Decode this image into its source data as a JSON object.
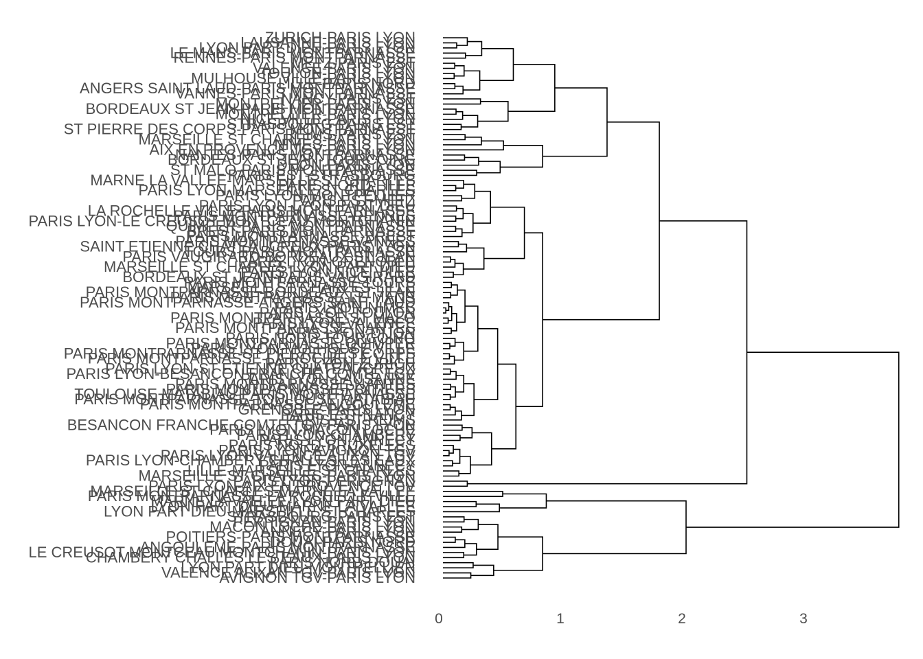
{
  "chart_data": {
    "type": "dendrogram",
    "orientation": "horizontal",
    "title": "",
    "xlabel": "",
    "ylabel": "",
    "xlim": [
      0,
      3.8
    ],
    "x_ticks": [
      0,
      1,
      2,
      3
    ],
    "grid": false,
    "legend": "none",
    "colors": {
      "line": "#000000",
      "text": "#4d4d4d",
      "background": "#ffffff"
    },
    "leaves": [
      "ZURICH-PARIS LYON",
      "LAUSANNE-PARIS LYON",
      "LYON PART DIEU-PARIS LYON",
      "LE MANS-PARIS MONTPARNASSE",
      "RENNES-PARIS MONTPARNASSE",
      "METZ-PARIS EST",
      "VALENCE-PARIS LYON",
      "TOULON-PARIS LYON",
      "MULHOUSE VILLE-PARIS LYON",
      "LILLE-PARIS NORD",
      "ANGERS SAINT LAUD-PARIS MONTPARNASSE",
      "VANNES-PARIS MONTPARNASSE",
      "NANCY-PARIS EST",
      "MONTPELLIER-PARIS LYON",
      "BORDEAUX ST JEAN-PARIS MONTPARNASSE",
      "MONTPELLIER-PARIS LYON",
      "NICE VILLE-PARIS LYON",
      "STRASBOURG-PARIS EST",
      "ST PIERRE DES CORPS-PARIS MONTPARNASSE",
      "REIMS-PARIS EST",
      "MARSEILLE ST CHARLES-PARIS LYON",
      "NIMES-PARIS LYON",
      "AIX EN PROVENCE TGV-PARIS LYON",
      "NANTES-PARIS MONTPARNASSE",
      "BORDEAUX ST JEAN-TOURCOING",
      "DIJON-PARIS LYON",
      "ST MALO-PARIS MONTPARNASSE",
      "PARIS EST-STRASBOURG",
      "MARNE LA VALLEE-MARSEILLE ST CHARLES",
      "PARIS NORD-LILLE",
      "PARIS LYON-MARSEILLE ST CHARLES",
      "PARIS LYON-MONTPELLIER",
      "PARIS EST-METZ",
      "PARIS LYON-LYON PART DIEU",
      "LA ROCHELLE VILLE-PARIS MONTPARNASSE",
      "PARIS MONTPARNASSE-RENNES",
      "PARIS LYON-LE CREUSOT MONTCEAU MONTCHANIN",
      "QUIMPER-PARIS MONTPARNASSE",
      "BREST-PARIS MONTPARNASSE",
      "PARIS MONTPARNASSE-BREST",
      "PARIS MONTPARNASSE-VANNES",
      "SAINT ETIENNE CHATEAUCREUX-PARIS LYON",
      "TOURS-PARIS MONTPARNASSE",
      "PARIS VAUGIRARD-BORDEAUX ST JEAN",
      "PARIS LYON-GRENOBLE",
      "MARSEILLE ST CHARLES-LYON PART DIEU",
      "PARIS LYON-NICE VILLE",
      "BORDEAUX ST JEAN-PARIS VAUGIRARD",
      "PARIS MONTPARNASSE-TOURS",
      "MARSEILLE ST CHARLES-LILLE",
      "PARIS MONTPARNASSE-BORDEAUX ST JEAN",
      "PARIS MONTPARNASSE-LE MANS",
      "PARIS MONTPARNASSE-ANGERS SAINT LAUD",
      "PARIS LYON-NIMES",
      "PARIS LYON-TOULON",
      "PARIS MONTPARNASSE-ST MALO",
      "PARIS LYON-VALENCE",
      "PARIS MONTPARNASSE-NANTES",
      "PARIS LYON-DIJON",
      "PARIS NORD-TOURCOING",
      "PARIS MONTPARNASSE-QUIMPER",
      "PARIS LYON-MULHOUSE VILLE",
      "PARIS MONTPARNASSE-ST PIERRE DES CORPS",
      "PARIS MONTPARNASSE-LA ROCHELLE VILLE",
      "PARIS LYON-ZURICH",
      "PARIS LYON-ST ETIENNE CHATEAUCREUX",
      "PARIS LYON-BESANCON FRANCHE COMTE TGV",
      "PARIS LYON-LAUSANNE",
      "PARIS MONTPARNASSE-NANTES",
      "PARIS MONTPARNASSE-POITIERS",
      "TOULOUSE MATABIAU-PARIS MONTPARNASSE",
      "PARIS MONTPARNASSE-TOULOUSE MATABIAU",
      "PARIS MONTPARNASSE-ANGOULEME",
      "GRENOBLE-PARIS LYON",
      "PARIS EST-NANCY",
      "PARIS EST-REIMS",
      "BESANCON FRANCHE COMTE TGV-PARIS LYON",
      "PARIS LYON-MACON LOCHE",
      "PARIS LYON-CHAMBERY",
      "PARIS LYON-ANNECY",
      "PARIS NORD-BRUXELLES",
      "PARIS LYON-AVIGNON TGV",
      "PARIS LYON-VALENCE ALIXAN TGV",
      "PARIS LYON-CHAMBERY CHALLES LES EAUX",
      "PARIS LYON-ANNECY",
      "LILLE-MARSEILLE ST CHARLES",
      "MARSEILLE ST CHARLES-PARIS LYON",
      "PARIS LYON-PERPIGNAN",
      "PARIS LYON-AIX EN PROVENCE TGV",
      "MARSEILLE ST CHARLES-MARNE LA VALLEE",
      "PARIS MONTPARNASSE-LA ROCHELLE VILLE",
      "MARNE LA VALLEE-LYON PART DIEU",
      "LYON PART DIEU-MARNE LA VALLEE",
      "LYON PART DIEU-MARSEILLE ST CHARLES",
      "STRASBOURG-PARIS EST",
      "PERPIGNAN-PARIS LYON",
      "MACON LOCHE-PARIS LYON",
      "ANNECY-PARIS LYON",
      "POITIERS-PARIS MONTPARNASSE",
      "DOUAI-PARIS NORD",
      "ANGOULEME-PARIS MONTPARNASSE",
      "LE CREUSOT MONTCEAU MONTCHANIN-PARIS LYON",
      "CHAMBERY CHALLES LES EAUX-PARIS LYON",
      "PARIS NORD-DOUAI",
      "LYON PART DIEU-MONTPELLIER",
      "VALENCE ALIXAN TGV-PARIS LYON",
      "AVIGNON TGV-PARIS LYON"
    ],
    "merge_heights_approx": [
      0.04,
      0.08,
      0.12,
      0.18,
      0.25,
      0.3,
      0.4,
      0.45,
      0.6,
      0.67,
      0.82,
      0.92,
      1.22,
      1.35,
      1.78,
      2.0,
      2.5,
      3.75
    ]
  }
}
